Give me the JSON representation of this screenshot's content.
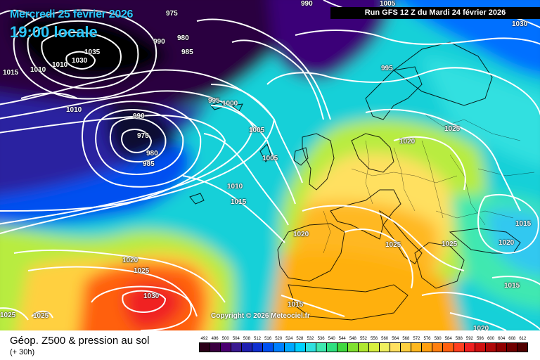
{
  "header": {
    "date": "Mercredi 25 février 2026",
    "time": "19:00 locale",
    "run_info": "Run GFS 12 Z du Mardi 24 février 2026"
  },
  "copyright": "Copyright © 2026 Meteociel.fr",
  "footer": {
    "title": "Géop. Z500 & pression au sol",
    "subtitle": "(+ 30h)"
  },
  "legend": {
    "values": [
      "492",
      "496",
      "500",
      "504",
      "508",
      "512",
      "516",
      "520",
      "524",
      "528",
      "532",
      "536",
      "540",
      "544",
      "548",
      "552",
      "556",
      "560",
      "564",
      "568",
      "572",
      "576",
      "580",
      "584",
      "588",
      "592",
      "596",
      "600",
      "604",
      "608",
      "612"
    ],
    "colors": [
      "#2a0018",
      "#3a0040",
      "#4a0070",
      "#3a1a90",
      "#2020b0",
      "#1030d0",
      "#0050f0",
      "#0080ff",
      "#00a8ff",
      "#00d0ff",
      "#30e0e0",
      "#40e8b0",
      "#30e080",
      "#40d840",
      "#80e030",
      "#b0e830",
      "#d8f040",
      "#f0f060",
      "#ffe060",
      "#ffd040",
      "#ffb820",
      "#ffa010",
      "#ff8010",
      "#ff6010",
      "#ff4020",
      "#f02020",
      "#d01010",
      "#b00808",
      "#900000",
      "#700000",
      "#500000"
    ]
  },
  "isobars": [
    {
      "v": "990",
      "t": "isobar-990-north"
    },
    {
      "v": "1005",
      "t": "isobar-1005-north"
    },
    {
      "v": "1030",
      "t": "isobar-1030-ne"
    },
    {
      "v": "975",
      "t": "isobar-975-nw"
    },
    {
      "v": "980",
      "t": "isobar-980-nw"
    },
    {
      "v": "990",
      "t": "isobar-990-nw"
    },
    {
      "v": "985",
      "t": "isobar-985-nw"
    },
    {
      "v": "1035",
      "t": "isobar-1035"
    },
    {
      "v": "1030",
      "t": "isobar-1030-west"
    },
    {
      "v": "1010",
      "t": "isobar-1010-west"
    },
    {
      "v": "1010",
      "t": "isobar-1010-west2"
    },
    {
      "v": "1015",
      "t": "isobar-1015-west"
    },
    {
      "v": "995",
      "t": "isobar-995-east"
    },
    {
      "v": "995",
      "t": "isobar-995-center"
    },
    {
      "v": "1000",
      "t": "isobar-1000-center"
    },
    {
      "v": "1010",
      "t": "isobar-1010-center"
    },
    {
      "v": "990",
      "t": "isobar-990-center"
    },
    {
      "v": "975",
      "t": "isobar-975-center"
    },
    {
      "v": "980",
      "t": "isobar-980-center"
    },
    {
      "v": "985",
      "t": "isobar-985-center"
    },
    {
      "v": "1005",
      "t": "isobar-1005-a"
    },
    {
      "v": "1005",
      "t": "isobar-1005-b"
    },
    {
      "v": "1010",
      "t": "isobar-1010-b"
    },
    {
      "v": "1015",
      "t": "isobar-1015-b"
    },
    {
      "v": "1020",
      "t": "isobar-1020-uk"
    },
    {
      "v": "1025",
      "t": "isobar-1025-ne"
    },
    {
      "v": "1020",
      "t": "isobar-1020-iberia"
    },
    {
      "v": "1025",
      "t": "isobar-1025-italy"
    },
    {
      "v": "1025",
      "t": "isobar-1025-balkans"
    },
    {
      "v": "1015",
      "t": "isobar-1015-east"
    },
    {
      "v": "1020",
      "t": "isobar-1020-east"
    },
    {
      "v": "1015",
      "t": "isobar-1015-se"
    },
    {
      "v": "1020",
      "t": "isobar-1020-atlantic"
    },
    {
      "v": "1025",
      "t": "isobar-1025-atlantic"
    },
    {
      "v": "1030",
      "t": "isobar-1030-atlantic"
    },
    {
      "v": "1025",
      "t": "isobar-1025-sw"
    },
    {
      "v": "1025",
      "t": "isobar-1025-sw2"
    },
    {
      "v": "1015",
      "t": "isobar-1015-africa"
    },
    {
      "v": "1020",
      "t": "isobar-1020-south"
    }
  ]
}
